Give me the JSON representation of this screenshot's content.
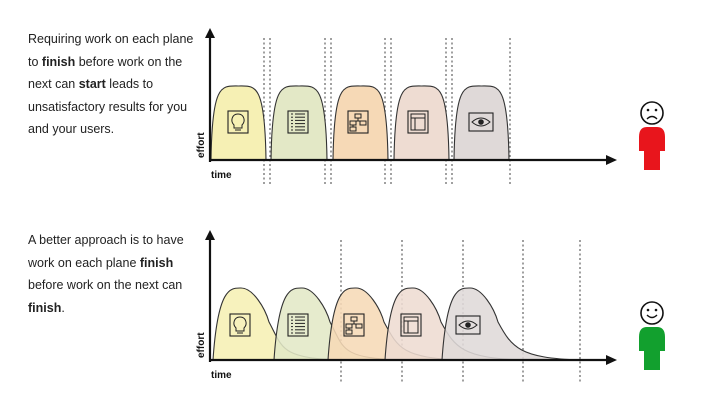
{
  "top_panel": {
    "caption_parts": [
      {
        "text": "Requiring work on each plane to ",
        "bold": false
      },
      {
        "text": "finish",
        "bold": true
      },
      {
        "text": " before work on the next can ",
        "bold": false
      },
      {
        "text": "start",
        "bold": true
      },
      {
        "text": " leads to unsatisfactory results for you and your users.",
        "bold": false
      }
    ],
    "x_axis_label": "time",
    "y_axis_label": "effort",
    "user_mood": "sad"
  },
  "bottom_panel": {
    "caption_parts": [
      {
        "text": "A better approach is to have work on each plane ",
        "bold": false
      },
      {
        "text": "finish",
        "bold": true
      },
      {
        "text": " before work on the next can ",
        "bold": false
      },
      {
        "text": "finish",
        "bold": true
      },
      {
        "text": ".",
        "bold": false
      }
    ],
    "x_axis_label": "time",
    "y_axis_label": "effort",
    "user_mood": "happy"
  },
  "planes": [
    {
      "icon": "lightbulb-icon",
      "color": "#f6f0b4"
    },
    {
      "icon": "list-icon",
      "color": "#e3e8c6"
    },
    {
      "icon": "sitemap-icon",
      "color": "#f6d9b6"
    },
    {
      "icon": "layout-icon",
      "color": "#eedcd2"
    },
    {
      "icon": "eye-icon",
      "color": "#dfd9d8"
    }
  ],
  "colors": {
    "sad_user": "#e8151c",
    "happy_user": "#12a02e",
    "axis": "#111111",
    "divider": "#777777"
  }
}
